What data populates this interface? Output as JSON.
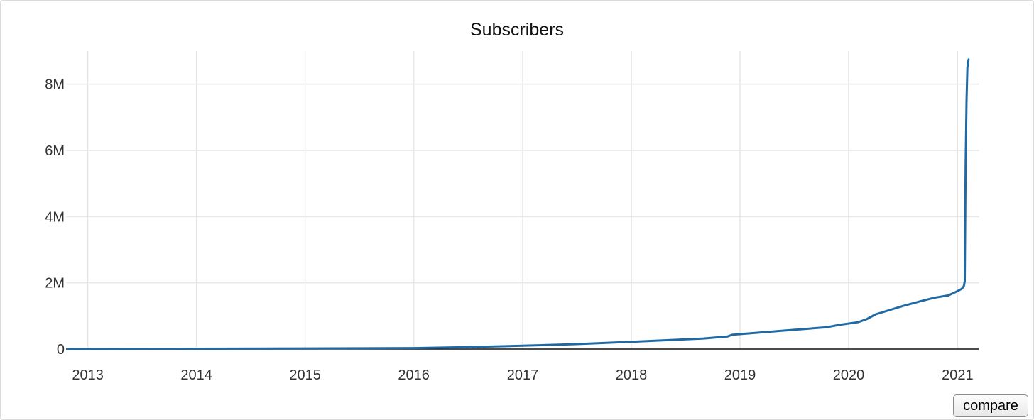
{
  "compare_button": {
    "label": "compare"
  },
  "chart_data": {
    "type": "line",
    "title": "Subscribers",
    "xlabel": "",
    "ylabel": "",
    "x_axis": {
      "type": "date",
      "range": [
        "2012-10-20",
        "2021-03-15"
      ],
      "ticks": [
        {
          "value": "2013-01-01",
          "label": "2013"
        },
        {
          "value": "2014-01-01",
          "label": "2014"
        },
        {
          "value": "2015-01-01",
          "label": "2015"
        },
        {
          "value": "2016-01-01",
          "label": "2016"
        },
        {
          "value": "2017-01-01",
          "label": "2017"
        },
        {
          "value": "2018-01-01",
          "label": "2018"
        },
        {
          "value": "2019-01-01",
          "label": "2019"
        },
        {
          "value": "2020-01-01",
          "label": "2020"
        },
        {
          "value": "2021-01-01",
          "label": "2021"
        }
      ]
    },
    "y_axis": {
      "range": [
        0,
        9000000
      ],
      "ticks": [
        {
          "value": 0,
          "label": "0"
        },
        {
          "value": 2000000,
          "label": "2M"
        },
        {
          "value": 4000000,
          "label": "4M"
        },
        {
          "value": 6000000,
          "label": "6M"
        },
        {
          "value": 8000000,
          "label": "8M"
        }
      ]
    },
    "grid": true,
    "color": "#1f6aa5",
    "series": [
      {
        "x": [
          "2012-10-24",
          "2013-06-01",
          "2014-01-01",
          "2015-01-01",
          "2016-01-01",
          "2016-07-01",
          "2017-01-01",
          "2017-07-01",
          "2018-01-01",
          "2018-09-01",
          "2018-11-20",
          "2018-12-05",
          "2019-06-01",
          "2019-10-20",
          "2019-12-01",
          "2020-02-01",
          "2020-03-01",
          "2020-04-01",
          "2020-07-01",
          "2020-09-01",
          "2020-10-15",
          "2020-12-01",
          "2021-01-01",
          "2021-01-15",
          "2021-01-22",
          "2021-01-25",
          "2021-01-28",
          "2021-01-31",
          "2021-02-03",
          "2021-02-07"
        ],
        "values": [
          0,
          5000,
          10000,
          20000,
          30000,
          60000,
          100000,
          150000,
          220000,
          320000,
          380000,
          430000,
          560000,
          660000,
          730000,
          810000,
          900000,
          1050000,
          1300000,
          1450000,
          1550000,
          1620000,
          1750000,
          1820000,
          1900000,
          2050000,
          5500000,
          7500000,
          8500000,
          8750000
        ]
      }
    ]
  }
}
